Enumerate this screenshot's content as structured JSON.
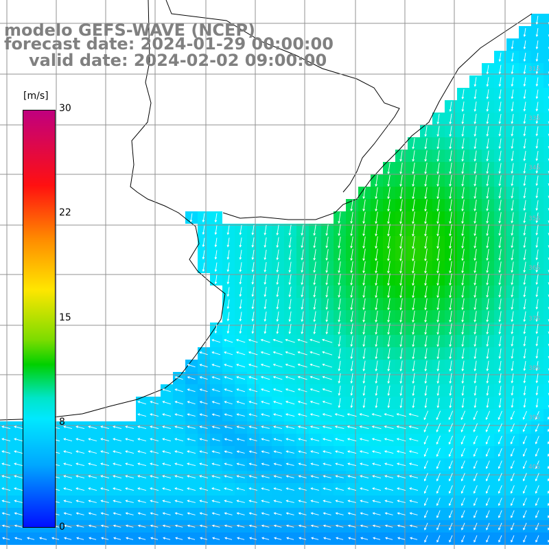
{
  "title": {
    "model": "modelo GEFS-WAVE (NCEP)",
    "forecast": "forecast date: 2024-01-29 00:00:00",
    "valid": "valid date: 2024-02-02 09:00:00"
  },
  "colorbar": {
    "unit": "[m/s]",
    "ticks": [
      "30",
      "22",
      "15",
      "8",
      "0"
    ],
    "colors": [
      "#c0007f",
      "#ff1010",
      "#ff8c00",
      "#ffe600",
      "#00d000",
      "#00e8ff",
      "#0010ff"
    ]
  },
  "lat_labels": [
    "31S",
    "33S",
    "34S",
    "35S",
    "36S",
    "37S",
    "38S",
    "39S",
    "40S"
  ],
  "colors": {
    "land": "#ffffff",
    "coast": "#000000",
    "grid": "#909090",
    "arrow": "#ffffff",
    "title": "#808080"
  }
}
